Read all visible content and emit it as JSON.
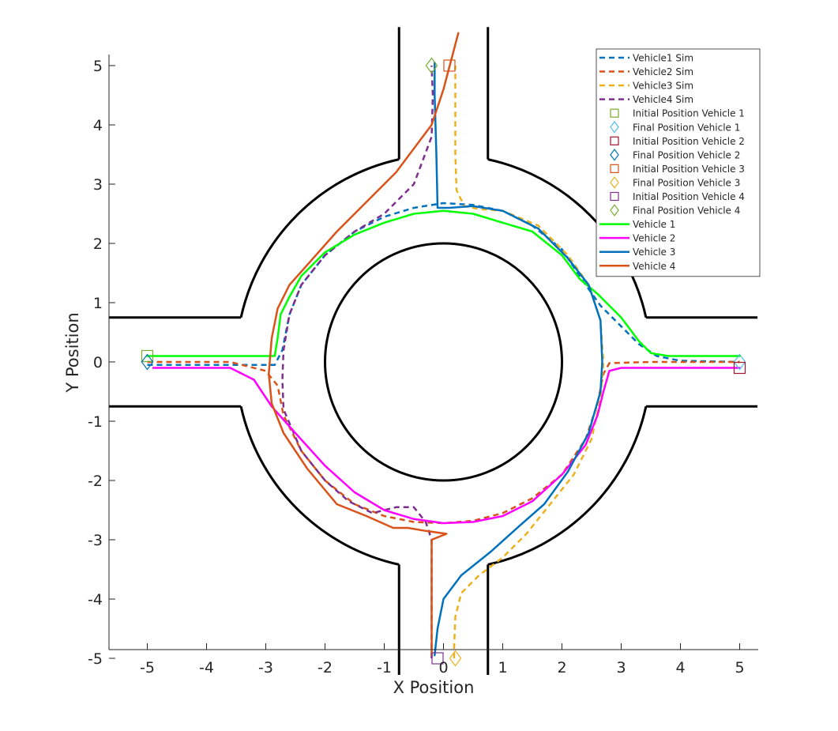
{
  "chart_data": {
    "type": "line",
    "title": "",
    "xlabel": "X Position",
    "ylabel": "Y Position",
    "xlim": [
      -5.65,
      5.3
    ],
    "ylim": [
      -5.28,
      5.65
    ],
    "xticks": [
      -5,
      -4,
      -3,
      -2,
      -1,
      0,
      1,
      2,
      3,
      4,
      5
    ],
    "yticks": [
      -5,
      -4,
      -3,
      -2,
      -1,
      0,
      1,
      2,
      3,
      4,
      5
    ],
    "grid": false,
    "legend_position": "top-right",
    "road": {
      "outer_radius": 3.5,
      "inner_island_radius": 2.0,
      "lane_half_width": 0.75
    },
    "series": [
      {
        "name": "Vehicle1 Sim",
        "kind": "line",
        "style": "dashed",
        "color": "#0072BD",
        "points": [
          [
            -5,
            -0.05
          ],
          [
            -3.5,
            -0.05
          ],
          [
            -2.85,
            -0.05
          ],
          [
            -2.72,
            0.2
          ],
          [
            -2.6,
            0.8
          ],
          [
            -2.4,
            1.3
          ],
          [
            -2.0,
            1.8
          ],
          [
            -1.5,
            2.2
          ],
          [
            -1.0,
            2.45
          ],
          [
            -0.5,
            2.6
          ],
          [
            0,
            2.68
          ],
          [
            0.5,
            2.65
          ],
          [
            1.0,
            2.55
          ],
          [
            1.5,
            2.3
          ],
          [
            2.0,
            1.9
          ],
          [
            2.4,
            1.3
          ],
          [
            2.65,
            0.95
          ],
          [
            3.0,
            0.6
          ],
          [
            3.3,
            0.3
          ],
          [
            3.6,
            0.1
          ],
          [
            4.0,
            0.02
          ],
          [
            5,
            0
          ]
        ]
      },
      {
        "name": "Vehicle2 Sim",
        "kind": "line",
        "style": "dashed",
        "color": "#D95319",
        "points": [
          [
            -5,
            0
          ],
          [
            -3.6,
            0
          ],
          [
            -3.0,
            -0.15
          ],
          [
            -2.8,
            -0.4
          ],
          [
            -2.7,
            -0.9
          ],
          [
            -2.4,
            -1.5
          ],
          [
            -2.0,
            -2.0
          ],
          [
            -1.5,
            -2.4
          ],
          [
            -1.0,
            -2.6
          ],
          [
            -0.5,
            -2.7
          ],
          [
            0,
            -2.72
          ],
          [
            0.5,
            -2.68
          ],
          [
            1.0,
            -2.55
          ],
          [
            1.5,
            -2.3
          ],
          [
            2.0,
            -1.9
          ],
          [
            2.4,
            -1.3
          ],
          [
            2.6,
            -0.7
          ],
          [
            2.7,
            -0.2
          ],
          [
            2.8,
            -0.02
          ],
          [
            3.5,
            0
          ],
          [
            5,
            0
          ]
        ]
      },
      {
        "name": "Vehicle3 Sim",
        "kind": "line",
        "style": "dashed",
        "color": "#EDB120",
        "points": [
          [
            0.18,
            -5
          ],
          [
            0.18,
            -4.8
          ],
          [
            0.2,
            -4.3
          ],
          [
            0.3,
            -3.9
          ],
          [
            0.6,
            -3.6
          ],
          [
            1.0,
            -3.3
          ],
          [
            1.4,
            -2.9
          ],
          [
            1.8,
            -2.4
          ],
          [
            2.2,
            -1.9
          ],
          [
            2.5,
            -1.3
          ],
          [
            2.65,
            -0.6
          ],
          [
            2.7,
            0
          ],
          [
            2.65,
            0.7
          ],
          [
            2.45,
            1.3
          ],
          [
            2.1,
            1.8
          ],
          [
            1.6,
            2.3
          ],
          [
            1.0,
            2.55
          ],
          [
            0.6,
            2.58
          ],
          [
            0.35,
            2.63
          ],
          [
            0.22,
            2.9
          ],
          [
            0.2,
            3.5
          ],
          [
            0.2,
            5
          ]
        ]
      },
      {
        "name": "Vehicle4 Sim",
        "kind": "line",
        "style": "dashed",
        "color": "#7E2F8E",
        "points": [
          [
            -0.2,
            -5
          ],
          [
            -0.2,
            -4.5
          ],
          [
            -0.2,
            -3.0
          ],
          [
            -0.3,
            -2.7
          ],
          [
            -0.5,
            -2.45
          ],
          [
            -0.8,
            -2.45
          ],
          [
            -1.2,
            -2.55
          ],
          [
            -1.6,
            -2.35
          ],
          [
            -2.0,
            -2.0
          ],
          [
            -2.4,
            -1.5
          ],
          [
            -2.7,
            -0.8
          ],
          [
            -2.72,
            -0.3
          ],
          [
            -2.7,
            0.2
          ],
          [
            -2.6,
            0.8
          ],
          [
            -2.4,
            1.3
          ],
          [
            -2.0,
            1.8
          ],
          [
            -1.5,
            2.2
          ],
          [
            -1.0,
            2.5
          ],
          [
            -0.5,
            3.0
          ],
          [
            -0.2,
            3.8
          ],
          [
            -0.18,
            4.5
          ],
          [
            -0.2,
            5
          ]
        ]
      },
      {
        "name": "Initial Position Vehicle 1",
        "kind": "marker",
        "marker": "square",
        "color": "#77AC30",
        "points": [
          [
            -5,
            0.1
          ]
        ]
      },
      {
        "name": "Final Position Vehicle 1",
        "kind": "marker",
        "marker": "diamond",
        "color": "#4DBEEE",
        "points": [
          [
            5,
            0
          ]
        ]
      },
      {
        "name": "Initial Position Vehicle 2",
        "kind": "marker",
        "marker": "square",
        "color": "#A2142F",
        "points": [
          [
            5,
            -0.1
          ]
        ]
      },
      {
        "name": "Final Position Vehicle 2",
        "kind": "marker",
        "marker": "diamond",
        "color": "#0072BD",
        "points": [
          [
            -5,
            0
          ]
        ]
      },
      {
        "name": "Initial Position Vehicle 3",
        "kind": "marker",
        "marker": "square",
        "color": "#D95319",
        "points": [
          [
            0.1,
            5
          ]
        ]
      },
      {
        "name": "Final Position Vehicle 3",
        "kind": "marker",
        "marker": "diamond",
        "color": "#EDB120",
        "points": [
          [
            0.2,
            -5
          ]
        ]
      },
      {
        "name": "Initial Position Vehicle 4",
        "kind": "marker",
        "marker": "square",
        "color": "#7E2F8E",
        "points": [
          [
            -0.1,
            -5
          ]
        ]
      },
      {
        "name": "Final Position Vehicle 4",
        "kind": "marker",
        "marker": "diamond",
        "color": "#77AC30",
        "points": [
          [
            -0.2,
            5
          ]
        ]
      },
      {
        "name": "Vehicle 1",
        "kind": "line",
        "style": "solid",
        "color": "#00FF00",
        "points": [
          [
            -5,
            0.1
          ],
          [
            -3.5,
            0.1
          ],
          [
            -2.85,
            0.1
          ],
          [
            -2.8,
            0.4
          ],
          [
            -2.75,
            0.8
          ],
          [
            -2.6,
            1.1
          ],
          [
            -2.4,
            1.45
          ],
          [
            -2.0,
            1.85
          ],
          [
            -1.5,
            2.15
          ],
          [
            -1.0,
            2.35
          ],
          [
            -0.5,
            2.5
          ],
          [
            0,
            2.55
          ],
          [
            0.5,
            2.5
          ],
          [
            1.0,
            2.35
          ],
          [
            1.5,
            2.2
          ],
          [
            2.0,
            1.8
          ],
          [
            2.3,
            1.4
          ],
          [
            2.6,
            1.15
          ],
          [
            3.0,
            0.75
          ],
          [
            3.3,
            0.35
          ],
          [
            3.5,
            0.15
          ],
          [
            3.8,
            0.1
          ],
          [
            5,
            0.1
          ]
        ]
      },
      {
        "name": "Vehicle 2",
        "kind": "line",
        "style": "solid",
        "color": "#FF00FF",
        "points": [
          [
            -4.9,
            -0.1
          ],
          [
            -3.6,
            -0.1
          ],
          [
            -3.2,
            -0.3
          ],
          [
            -2.9,
            -0.75
          ],
          [
            -2.5,
            -1.2
          ],
          [
            -2.0,
            -1.75
          ],
          [
            -1.5,
            -2.2
          ],
          [
            -1.0,
            -2.5
          ],
          [
            -0.5,
            -2.65
          ],
          [
            0,
            -2.72
          ],
          [
            0.5,
            -2.7
          ],
          [
            1.0,
            -2.6
          ],
          [
            1.5,
            -2.35
          ],
          [
            2.0,
            -1.9
          ],
          [
            2.4,
            -1.4
          ],
          [
            2.6,
            -0.9
          ],
          [
            2.7,
            -0.5
          ],
          [
            2.8,
            -0.15
          ],
          [
            3.0,
            -0.1
          ],
          [
            5,
            -0.1
          ]
        ]
      },
      {
        "name": "Vehicle 3",
        "kind": "line",
        "style": "solid",
        "color": "#0072BD",
        "points": [
          [
            -0.15,
            -4.95
          ],
          [
            -0.1,
            -4.5
          ],
          [
            0,
            -4.0
          ],
          [
            0.3,
            -3.6
          ],
          [
            0.8,
            -3.2
          ],
          [
            1.3,
            -2.75
          ],
          [
            1.7,
            -2.4
          ],
          [
            2.1,
            -1.85
          ],
          [
            2.45,
            -1.2
          ],
          [
            2.65,
            -0.5
          ],
          [
            2.68,
            0
          ],
          [
            2.65,
            0.7
          ],
          [
            2.45,
            1.3
          ],
          [
            2.1,
            1.75
          ],
          [
            1.6,
            2.25
          ],
          [
            1.0,
            2.55
          ],
          [
            0.5,
            2.63
          ],
          [
            0.1,
            2.6
          ],
          [
            -0.1,
            2.6
          ],
          [
            -0.12,
            3.5
          ],
          [
            -0.15,
            4.5
          ],
          [
            -0.15,
            5.05
          ]
        ]
      },
      {
        "name": "Vehicle 4",
        "kind": "line",
        "style": "solid",
        "color": "#D95319",
        "points": [
          [
            -0.2,
            -4.95
          ],
          [
            -0.2,
            -3.0
          ],
          [
            0.05,
            -2.9
          ],
          [
            -0.3,
            -2.85
          ],
          [
            -0.6,
            -2.8
          ],
          [
            -0.85,
            -2.8
          ],
          [
            -1.3,
            -2.6
          ],
          [
            -1.8,
            -2.4
          ],
          [
            -2.3,
            -1.8
          ],
          [
            -2.7,
            -1.2
          ],
          [
            -2.9,
            -0.7
          ],
          [
            -2.95,
            -0.2
          ],
          [
            -2.9,
            0.4
          ],
          [
            -2.8,
            0.9
          ],
          [
            -2.6,
            1.3
          ],
          [
            -2.2,
            1.75
          ],
          [
            -1.8,
            2.2
          ],
          [
            -1.3,
            2.7
          ],
          [
            -0.8,
            3.2
          ],
          [
            -0.2,
            4.0
          ],
          [
            0,
            4.6
          ],
          [
            0.25,
            5.55
          ]
        ]
      }
    ]
  }
}
